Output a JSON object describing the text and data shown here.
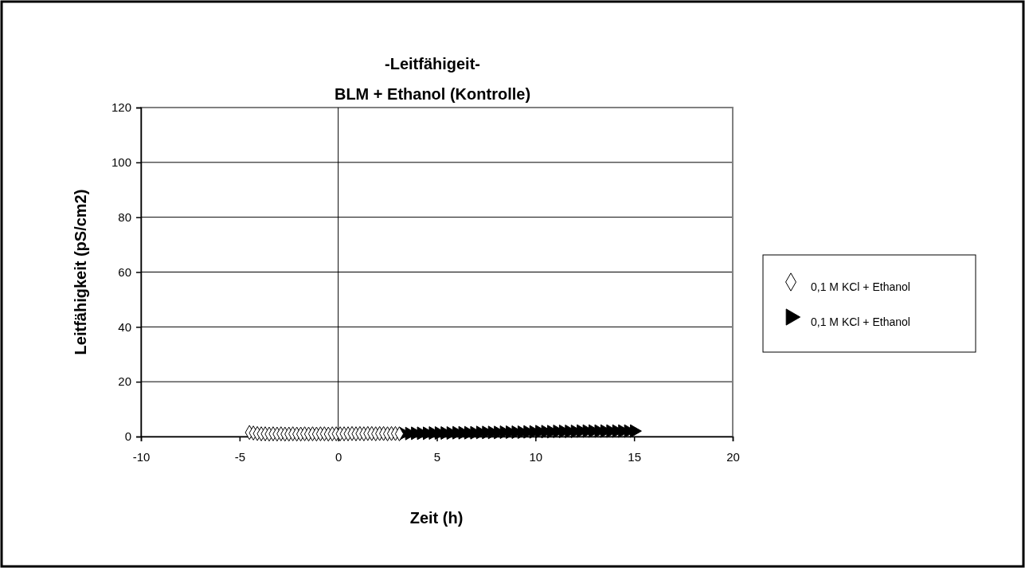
{
  "chart_data": {
    "type": "scatter",
    "title": "-Leitfähigeit-",
    "subtitle": "BLM + Ethanol (Kontrolle)",
    "xlabel": "Zeit (h)",
    "ylabel": "Leitfähigkeit (pS/cm2)",
    "xlim": [
      -10,
      20
    ],
    "xticks": [
      -10,
      -5,
      0,
      5,
      10,
      15,
      20
    ],
    "ylim": [
      0,
      120
    ],
    "yticks": [
      0,
      20,
      40,
      60,
      80,
      100,
      120
    ],
    "grid": "y",
    "legend": "right",
    "ref_lines": [
      {
        "axis": "x",
        "value": 0,
        "color": "#000000"
      }
    ],
    "series": [
      {
        "name": "0,1 M KCl + Ethanol",
        "color": "#000000",
        "marker": "diamond",
        "x": [
          -4.5,
          -4.3,
          -4.1,
          -3.9,
          -3.7,
          -3.5,
          -3.3,
          -3.1,
          -2.9,
          -2.7,
          -2.5,
          -2.3,
          -2.1,
          -1.9,
          -1.7,
          -1.5,
          -1.3,
          -1.1,
          -0.9,
          -0.7,
          -0.5,
          -0.3,
          -0.1,
          0.1,
          0.3,
          0.5,
          0.7,
          0.9,
          1.1,
          1.3,
          1.5,
          1.7,
          1.9,
          2.1,
          2.3,
          2.5,
          2.7,
          2.9,
          3.1
        ],
        "values": [
          1.5,
          1.3,
          1.1,
          1.0,
          1.0,
          0.9,
          1.0,
          0.9,
          1.0,
          0.9,
          0.9,
          1.0,
          0.9,
          0.9,
          1.0,
          0.9,
          1.0,
          0.9,
          1.0,
          1.0,
          0.9,
          1.0,
          1.0,
          1.0,
          1.0,
          1.0,
          1.1,
          1.0,
          1.1,
          1.0,
          1.1,
          1.1,
          1.0,
          1.1,
          1.1,
          1.0,
          1.1,
          1.1,
          1.0
        ]
      },
      {
        "name": "0,1 M KCl + Ethanol",
        "color": "#000000",
        "marker": "triangle",
        "x": [
          3.3,
          3.6,
          3.9,
          4.2,
          4.5,
          4.8,
          5.1,
          5.4,
          5.7,
          6.0,
          6.3,
          6.6,
          6.9,
          7.2,
          7.5,
          7.8,
          8.1,
          8.4,
          8.7,
          9.0,
          9.3,
          9.6,
          9.9,
          10.2,
          10.5,
          10.8,
          11.1,
          11.4,
          11.7,
          12.0,
          12.3,
          12.6,
          12.9,
          13.2,
          13.5,
          13.8,
          14.1,
          14.4,
          14.7,
          15.0
        ],
        "values": [
          1.1,
          1.1,
          1.2,
          1.2,
          1.2,
          1.3,
          1.3,
          1.3,
          1.3,
          1.4,
          1.4,
          1.4,
          1.4,
          1.5,
          1.5,
          1.5,
          1.5,
          1.6,
          1.6,
          1.6,
          1.6,
          1.7,
          1.7,
          1.8,
          1.8,
          1.8,
          1.9,
          1.9,
          1.9,
          1.9,
          2.0,
          2.0,
          2.0,
          2.0,
          2.0,
          2.0,
          2.0,
          2.0,
          2.0,
          2.0
        ]
      }
    ]
  }
}
